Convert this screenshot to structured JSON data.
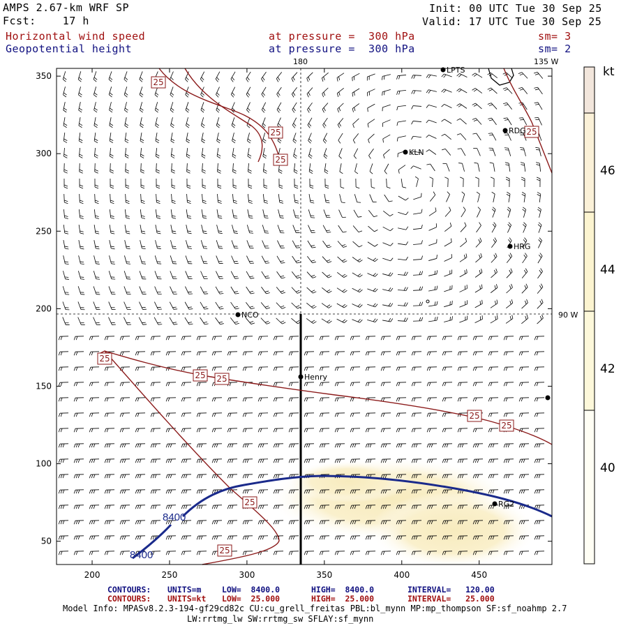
{
  "header": {
    "model_title": "AMPS 2.67-km WRF SP",
    "forecast": "Fcst:    17 h",
    "init": "Init: 00 UTC Tue 30 Sep 25",
    "valid": "Valid: 17 UTC Tue 30 Sep 25",
    "field1_name": "Horizontal wind speed",
    "field1_level": "at pressure =  300 hPa",
    "field1_sm": "sm= 3",
    "field2_name": "Geopotential height",
    "field2_level": "at pressure =  300 hPa",
    "field2_sm": "sm= 2"
  },
  "map": {
    "x_ticks": [
      "200",
      "250",
      "300",
      "350",
      "400",
      "450"
    ],
    "y_ticks": [
      "350",
      "300",
      "250",
      "200",
      "150",
      "100",
      "50"
    ],
    "meridian_labels": [
      "180",
      "135 W",
      "90 W"
    ],
    "stations": [
      "LPTS",
      "RDG",
      "KLN",
      "HRG",
      "NCO",
      "Henry",
      "RG2"
    ],
    "speed_contour_label": "25",
    "height_contour_label": "8400",
    "colors": {
      "speed_contour": "#8b1a1a",
      "height_contour": "#1a2a8b",
      "shade_low": "#fbf4d8",
      "shade_mid": "#f8efc8"
    }
  },
  "colorbar": {
    "unit": "kt",
    "ticks": [
      "46",
      "44",
      "42",
      "40"
    ],
    "bands": [
      "#f2e6dc",
      "#fbf1d8",
      "#fcf5d2",
      "#fdf8da",
      "#fffef4"
    ]
  },
  "footer": {
    "row1": {
      "label": "CONTOURS:",
      "units": "UNITS=m",
      "low": "LOW=  8400.0",
      "high": "HIGH=  8400.0",
      "interval": "INTERVAL=   120.00"
    },
    "row2": {
      "label": "CONTOURS:",
      "units": "UNITS=kt",
      "low": "LOW=  25.000",
      "high": "HIGH=  25.000",
      "interval": "INTERVAL=   25.000"
    },
    "model_info": "Model Info: MPASv8.2.3-194-gf29cd82c CU:cu_grell_freitas PBL:bl_mynn MP:mp_thompson SF:sf_noahmp 2.7",
    "model_info2": "LW:rrtmg_lw SW:rrtmg_sw SFLAY:sf_mynn"
  }
}
